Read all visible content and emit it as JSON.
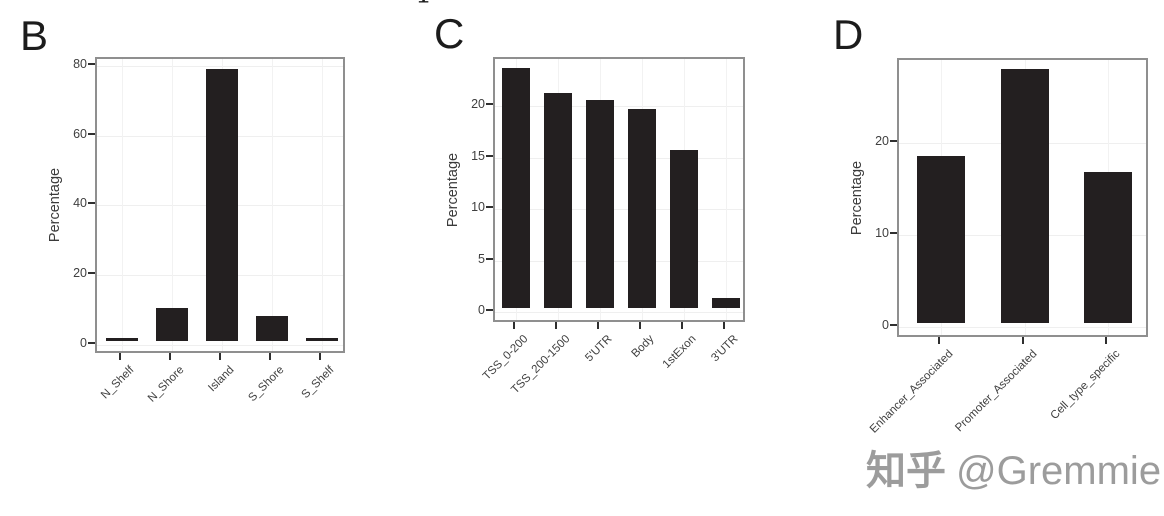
{
  "figure": {
    "background": "#ffffff",
    "bar_color": "#231f20",
    "panel_border_color": "#8f8f8f",
    "gridline_color": "#efefef",
    "tick_label_color": "#404040",
    "letter_color": "#1c1c1c"
  },
  "cropped_top_text": "1",
  "watermark": {
    "brand": "知乎",
    "handle": "@Gremmie",
    "color": "#9c9c9c"
  },
  "chart_data": [
    {
      "type": "bar",
      "panel_letter": "B",
      "title": "",
      "xlabel": "",
      "ylabel": "Percentage",
      "categories": [
        "N_Shelf",
        "N_Shore",
        "Island",
        "S_Shore",
        "S_Shelf"
      ],
      "values": [
        0.8,
        9.5,
        77.8,
        7.2,
        0.8
      ],
      "yticks": [
        0,
        20,
        40,
        60,
        80
      ],
      "ylim": [
        0,
        81
      ],
      "grid": "light-major",
      "legend": "none",
      "x_tick_rotation_deg": 45
    },
    {
      "type": "bar",
      "panel_letter": "C",
      "title": "",
      "xlabel": "",
      "ylabel": "Percentage",
      "categories": [
        "TSS_0-200",
        "TSS_200-1500",
        "5'UTR",
        "Body",
        "1stExon",
        "3'UTR"
      ],
      "values": [
        23.3,
        20.9,
        20.2,
        19.3,
        15.3,
        1.0
      ],
      "yticks": [
        0,
        5,
        10,
        15,
        20
      ],
      "ylim": [
        0,
        24.5
      ],
      "grid": "light-major",
      "legend": "none",
      "x_tick_rotation_deg": 45
    },
    {
      "type": "bar",
      "panel_letter": "D",
      "title": "",
      "xlabel": "",
      "ylabel": "Percentage",
      "categories": [
        "Enhancer_Associated",
        "Promoter_Associated",
        "Cell_type_specific"
      ],
      "values": [
        18.2,
        27.6,
        16.4
      ],
      "yticks": [
        0,
        10,
        20
      ],
      "ylim": [
        0,
        29
      ],
      "grid": "light-major",
      "legend": "none",
      "x_tick_rotation_deg": 45
    }
  ]
}
